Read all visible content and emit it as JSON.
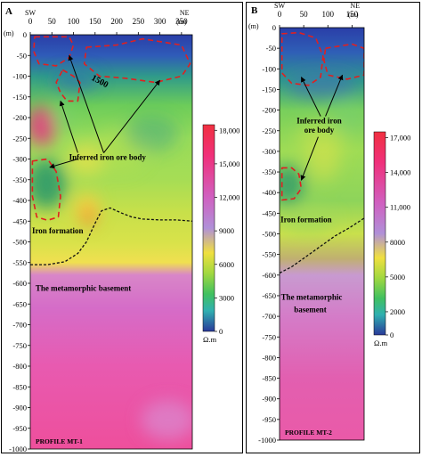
{
  "chart_data": [
    {
      "type": "heatmap",
      "panel_label": "A",
      "profile": "PROFILE   MT-1",
      "unit_label": "(m)",
      "x_dir_left": "SW",
      "x_dir_right": "NE",
      "x_ticks": [
        "0",
        "50",
        "100",
        "150",
        "200",
        "250",
        "300",
        "350"
      ],
      "x_tick_values": [
        0,
        50,
        100,
        150,
        200,
        250,
        300,
        350
      ],
      "x_unit": "(m)",
      "xlim": [
        0,
        375
      ],
      "ylim": [
        -1000,
        0
      ],
      "y_ticks": [
        "0",
        "-50",
        "-100",
        "-150",
        "-200",
        "-250",
        "-300",
        "-350",
        "-400",
        "-450",
        "-500",
        "-550",
        "-600",
        "-650",
        "-700",
        "-750",
        "-800",
        "-850",
        "-900",
        "-950",
        "-1000"
      ],
      "y_tick_values": [
        0,
        -50,
        -100,
        -150,
        -200,
        -250,
        -300,
        -350,
        -400,
        -450,
        -500,
        -550,
        -600,
        -650,
        -700,
        -750,
        -800,
        -850,
        -900,
        -950,
        -1000
      ],
      "colorbar": {
        "ticks": [
          "18,000",
          "15,000",
          "12,000",
          "9000",
          "6000",
          "3000",
          "0"
        ],
        "tick_values": [
          18000,
          15000,
          12000,
          9000,
          6000,
          3000,
          0
        ],
        "unit": "Ω.m",
        "range": [
          0,
          18500
        ]
      },
      "annotations": {
        "inferred": "Inferred iron ore body",
        "iron_formation": "Iron formation",
        "basement": "The metamorphic basement",
        "contour_value": "1500"
      },
      "boundary_line": [
        [
          0,
          -555
        ],
        [
          40,
          -555
        ],
        [
          80,
          -548
        ],
        [
          110,
          -528
        ],
        [
          130,
          -500
        ],
        [
          150,
          -455
        ],
        [
          165,
          -425
        ],
        [
          185,
          -418
        ],
        [
          210,
          -430
        ],
        [
          235,
          -440
        ],
        [
          260,
          -445
        ],
        [
          300,
          -447
        ],
        [
          340,
          -447
        ],
        [
          375,
          -450
        ]
      ],
      "ore_bodies": [
        [
          [
            10,
            -5
          ],
          [
            90,
            -5
          ],
          [
            100,
            -25
          ],
          [
            90,
            -55
          ],
          [
            60,
            -75
          ],
          [
            20,
            -70
          ],
          [
            8,
            -40
          ]
        ],
        [
          [
            130,
            -30
          ],
          [
            200,
            -25
          ],
          [
            260,
            -10
          ],
          [
            350,
            -25
          ],
          [
            370,
            -70
          ],
          [
            350,
            -100
          ],
          [
            290,
            -115
          ],
          [
            220,
            -105
          ],
          [
            160,
            -100
          ],
          [
            125,
            -70
          ]
        ],
        [
          [
            75,
            -85
          ],
          [
            100,
            -100
          ],
          [
            115,
            -115
          ],
          [
            110,
            -160
          ],
          [
            85,
            -160
          ],
          [
            70,
            -140
          ],
          [
            60,
            -115
          ],
          [
            70,
            -95
          ]
        ],
        [
          [
            5,
            -305
          ],
          [
            40,
            -300
          ],
          [
            60,
            -330
          ],
          [
            70,
            -390
          ],
          [
            65,
            -440
          ],
          [
            40,
            -448
          ],
          [
            15,
            -440
          ],
          [
            5,
            -390
          ]
        ]
      ]
    },
    {
      "type": "heatmap",
      "panel_label": "B",
      "profile": "PROFILE   MT-2",
      "unit_label": "(m)",
      "x_dir_left": "SW",
      "x_dir_right": "NE",
      "x_ticks": [
        "0",
        "50",
        "100",
        "150"
      ],
      "x_tick_values": [
        0,
        50,
        100,
        150
      ],
      "x_unit": "(m)",
      "xlim": [
        0,
        175
      ],
      "ylim": [
        -1000,
        0
      ],
      "y_ticks": [
        "0",
        "-50",
        "-100",
        "-150",
        "-200",
        "-250",
        "-300",
        "-350",
        "-400",
        "-450",
        "-500",
        "-550",
        "-600",
        "-650",
        "-700",
        "-750",
        "-800",
        "-850",
        "-900",
        "-950",
        "-1000"
      ],
      "y_tick_values": [
        0,
        -50,
        -100,
        -150,
        -200,
        -250,
        -300,
        -350,
        -400,
        -450,
        -500,
        -550,
        -600,
        -650,
        -700,
        -750,
        -800,
        -850,
        -900,
        -950,
        -1000
      ],
      "colorbar": {
        "ticks": [
          "17,000",
          "14,000",
          "11,000",
          "8000",
          "5000",
          "2000",
          "0"
        ],
        "tick_values": [
          17000,
          14000,
          11000,
          8000,
          5000,
          2000,
          0
        ],
        "unit": "Ω.m",
        "range": [
          0,
          17500
        ]
      },
      "annotations": {
        "inferred": "Inferred iron ore body",
        "iron_formation": "Iron formation",
        "basement": "The metamorphic basement"
      },
      "boundary_line": [
        [
          0,
          -595
        ],
        [
          25,
          -580
        ],
        [
          55,
          -555
        ],
        [
          85,
          -530
        ],
        [
          115,
          -505
        ],
        [
          145,
          -485
        ],
        [
          175,
          -462
        ]
      ],
      "ore_bodies": [
        [
          [
            5,
            -15
          ],
          [
            40,
            -12
          ],
          [
            75,
            -25
          ],
          [
            90,
            -70
          ],
          [
            85,
            -120
          ],
          [
            60,
            -140
          ],
          [
            25,
            -135
          ],
          [
            5,
            -110
          ]
        ],
        [
          [
            95,
            -50
          ],
          [
            150,
            -40
          ],
          [
            175,
            -50
          ],
          [
            175,
            -115
          ],
          [
            140,
            -125
          ],
          [
            100,
            -115
          ],
          [
            92,
            -80
          ]
        ],
        [
          [
            5,
            -340
          ],
          [
            25,
            -340
          ],
          [
            40,
            -355
          ],
          [
            45,
            -390
          ],
          [
            30,
            -415
          ],
          [
            5,
            -418
          ]
        ]
      ]
    }
  ]
}
